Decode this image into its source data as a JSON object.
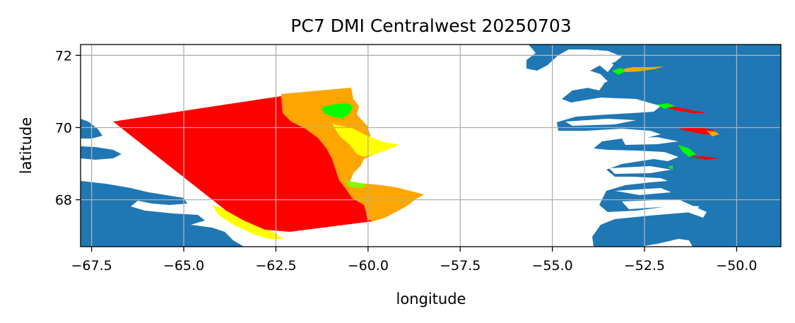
{
  "title": "PC7 DMI Centralwest 20250703",
  "xlabel": "longitude",
  "ylabel": "latitude",
  "colors": {
    "land": "#1f77b4",
    "sea": "#ffffff",
    "grid": "#b0b0b0",
    "ice_red": "#ff0000",
    "ice_orange": "#ffa500",
    "ice_yellow": "#ffff00",
    "ice_green": "#00ff00"
  },
  "chart_data": {
    "type": "map",
    "xlim": [
      -67.8,
      -48.8
    ],
    "ylim": [
      66.7,
      72.3
    ],
    "xticks": [
      -67.5,
      -65.0,
      -62.5,
      -60.0,
      -57.5,
      -55.0,
      -52.5,
      -50.0
    ],
    "xtick_labels": [
      "−67.5",
      "−65.0",
      "−62.5",
      "−60.0",
      "−57.5",
      "−55.0",
      "−52.5",
      "−50.0"
    ],
    "yticks": [
      68,
      70,
      72
    ],
    "ytick_labels": [
      "68",
      "70",
      "72"
    ],
    "grid": true
  }
}
